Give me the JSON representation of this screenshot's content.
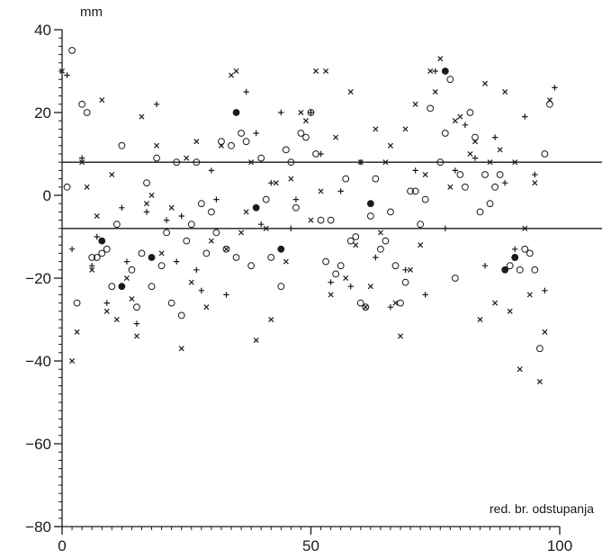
{
  "chart_data": {
    "type": "scatter",
    "title": "",
    "ylabel": "mm",
    "xlabel": "red. br. odstupanja",
    "xlim": [
      0,
      100
    ],
    "ylim": [
      -80,
      40
    ],
    "x_ticks": [
      0,
      50,
      100
    ],
    "y_ticks": [
      40,
      20,
      0,
      -20,
      -40,
      -60,
      -80
    ],
    "x_minor_step": 2,
    "y_minor_step": 2,
    "grid": false,
    "reference_lines": [
      8,
      -8
    ],
    "colors": {
      "marker": "#1a1a1a",
      "axis": "#1a1a1a"
    },
    "series": [
      {
        "marker": "circle-open",
        "x": [
          1,
          2,
          3,
          4,
          5,
          6,
          7,
          8,
          9,
          10,
          11,
          12,
          14,
          15,
          16,
          17,
          18,
          19,
          20,
          21,
          22,
          23,
          24,
          25,
          26,
          27,
          28,
          29,
          30,
          31,
          32,
          33,
          34,
          35,
          36,
          37,
          38,
          40,
          41,
          42,
          44,
          45,
          46,
          47,
          48,
          49,
          50,
          51,
          52,
          53,
          54,
          55,
          56,
          57,
          58,
          59,
          60,
          61,
          62,
          63,
          64,
          65,
          66,
          67,
          68,
          69,
          70,
          71,
          72,
          73,
          74,
          76,
          77,
          78,
          79,
          80,
          81,
          82,
          83,
          84,
          85,
          86,
          87,
          88,
          90,
          91,
          92,
          93,
          94,
          95,
          96,
          97,
          98
        ],
        "y": [
          2,
          35,
          -26,
          22,
          20,
          -15,
          -15,
          -14,
          -13,
          -22,
          -7,
          12,
          -18,
          -27,
          -14,
          3,
          -22,
          9,
          -17,
          -9,
          -26,
          8,
          -29,
          -11,
          -7,
          8,
          -2,
          -14,
          -4,
          -9,
          13,
          -13,
          12,
          -15,
          15,
          13,
          -17,
          9,
          -1,
          -15,
          -22,
          11,
          8,
          -3,
          15,
          14,
          20,
          10,
          -6,
          -16,
          -6,
          -19,
          -17,
          4,
          -11,
          -10,
          -26,
          -27,
          -5,
          4,
          -13,
          -11,
          -4,
          -17,
          -26,
          -21,
          1,
          1,
          -7,
          -1,
          21,
          8,
          15,
          28,
          -20,
          5,
          2,
          20,
          14,
          -4,
          5,
          -2,
          2,
          5,
          -17,
          -15,
          -18,
          -13,
          -14,
          -18,
          -37,
          10,
          22
        ]
      },
      {
        "marker": "circle-filled",
        "x": [
          8,
          12,
          18,
          35,
          39,
          44,
          62,
          77,
          89,
          91
        ],
        "y": [
          -11,
          -22,
          -15,
          20,
          -3,
          -13,
          -2,
          30,
          -18,
          -15
        ]
      },
      {
        "marker": "cross",
        "x": [
          0,
          2,
          3,
          4,
          5,
          6,
          7,
          8,
          9,
          10,
          11,
          13,
          14,
          15,
          16,
          17,
          18,
          19,
          20,
          22,
          24,
          25,
          26,
          27,
          29,
          30,
          32,
          33,
          34,
          35,
          36,
          37,
          38,
          39,
          41,
          42,
          43,
          45,
          46,
          48,
          49,
          50,
          51,
          52,
          53,
          54,
          55,
          57,
          58,
          59,
          60,
          61,
          62,
          63,
          64,
          65,
          66,
          67,
          68,
          69,
          70,
          71,
          72,
          73,
          74,
          75,
          76,
          78,
          79,
          80,
          82,
          83,
          84,
          85,
          86,
          87,
          88,
          89,
          90,
          91,
          92,
          93,
          94,
          95,
          96,
          97,
          98
        ],
        "y": [
          30,
          -40,
          -33,
          8,
          2,
          -18,
          -5,
          23,
          -28,
          5,
          -30,
          -20,
          -25,
          -34,
          19,
          -2,
          0,
          12,
          -14,
          -3,
          -37,
          9,
          -21,
          13,
          -27,
          -11,
          12,
          -13,
          29,
          30,
          -9,
          -4,
          8,
          -35,
          -8,
          -30,
          3,
          -16,
          4,
          20,
          18,
          -6,
          30,
          1,
          30,
          -24,
          14,
          -20,
          25,
          -12,
          8,
          -27,
          -22,
          16,
          -9,
          8,
          12,
          -26,
          -34,
          16,
          -18,
          22,
          -12,
          5,
          30,
          25,
          33,
          2,
          18,
          19,
          10,
          13,
          -30,
          27,
          8,
          -26,
          11,
          25,
          -28,
          8,
          -42,
          -8,
          -24,
          3,
          -45,
          -33,
          23
        ]
      },
      {
        "marker": "plus",
        "x": [
          1,
          2,
          4,
          6,
          7,
          9,
          12,
          13,
          15,
          17,
          19,
          21,
          23,
          24,
          27,
          28,
          30,
          31,
          33,
          35,
          37,
          39,
          40,
          42,
          44,
          46,
          47,
          50,
          52,
          54,
          56,
          58,
          60,
          63,
          66,
          69,
          71,
          73,
          75,
          77,
          79,
          81,
          83,
          85,
          87,
          89,
          91,
          93,
          95,
          97,
          99
        ],
        "y": [
          29,
          -13,
          9,
          -17,
          -10,
          -26,
          -3,
          -16,
          -31,
          -4,
          22,
          -6,
          -16,
          -5,
          -18,
          -23,
          6,
          -1,
          -24,
          20,
          25,
          15,
          -7,
          3,
          20,
          -8,
          -1,
          20,
          10,
          -21,
          1,
          -22,
          8,
          -15,
          -27,
          -18,
          6,
          -24,
          30,
          -8,
          6,
          17,
          9,
          -17,
          14,
          3,
          -13,
          19,
          5,
          -23,
          26
        ]
      }
    ]
  }
}
